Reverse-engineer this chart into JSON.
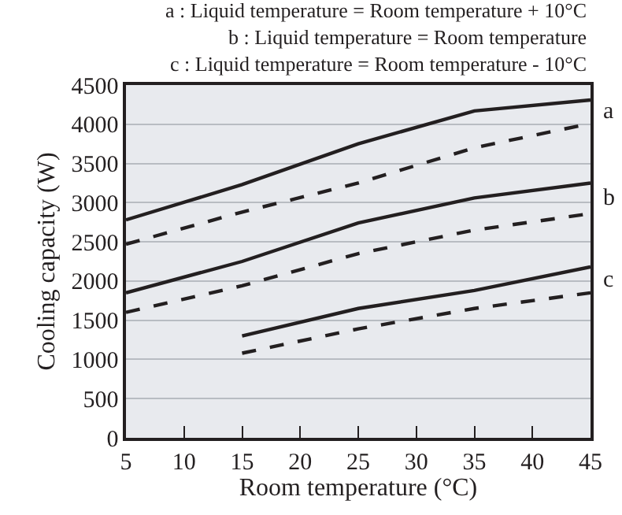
{
  "chart_data": {
    "type": "line",
    "xlabel": "Room temperature (°C)",
    "ylabel": "Cooling capacity (W)",
    "annotations": [
      "a : Liquid temperature = Room temperature + 10°C",
      "b : Liquid temperature = Room temperature",
      "c : Liquid temperature = Room temperature - 10°C"
    ],
    "x": [
      5,
      15,
      25,
      35,
      45
    ],
    "xlim": [
      5,
      45
    ],
    "xticks": [
      5,
      10,
      15,
      20,
      25,
      30,
      35,
      40,
      45
    ],
    "ylim": [
      0,
      4500
    ],
    "yticks": [
      0,
      500,
      1000,
      1500,
      2000,
      2500,
      3000,
      3500,
      4000,
      4500
    ],
    "grid": "y",
    "legend": false,
    "marker": "none",
    "series": [
      {
        "name": "a",
        "color": "#231f20",
        "line_style": "solid",
        "values": [
          2780,
          3230,
          3750,
          4170,
          4310
        ]
      },
      {
        "color": "#231f20",
        "line_style": "dashed",
        "values": [
          2470,
          2880,
          3250,
          3700,
          4010
        ]
      },
      {
        "name": "b",
        "color": "#231f20",
        "line_style": "solid",
        "values": [
          1850,
          2250,
          2740,
          3060,
          3250
        ]
      },
      {
        "color": "#231f20",
        "line_style": "dashed",
        "values": [
          1600,
          1940,
          2350,
          2650,
          2860
        ]
      },
      {
        "name": "c",
        "color": "#231f20",
        "line_style": "solid",
        "values": [
          null,
          1300,
          1650,
          1880,
          2180
        ]
      },
      {
        "color": "#231f20",
        "line_style": "dashed",
        "values": [
          null,
          1080,
          1390,
          1650,
          1850
        ]
      }
    ]
  }
}
